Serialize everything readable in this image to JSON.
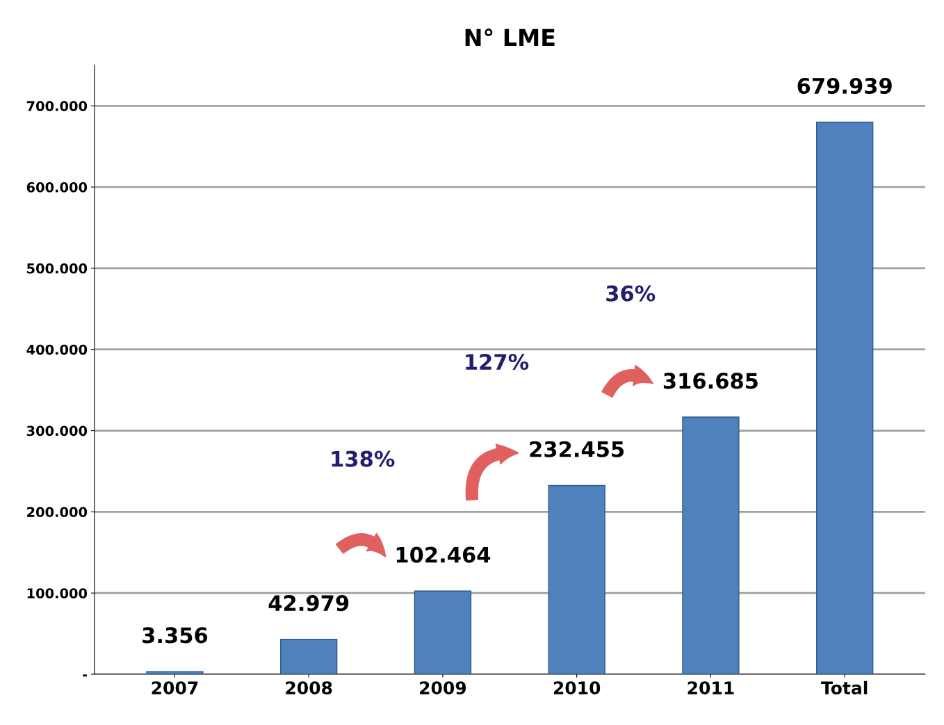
{
  "chart_data": {
    "type": "bar",
    "title": "N° LME",
    "categories": [
      "2007",
      "2008",
      "2009",
      "2010",
      "2011",
      "Total"
    ],
    "values": [
      3356,
      42979,
      102464,
      232455,
      316685,
      679939
    ],
    "value_labels": [
      "3.356",
      "42.979",
      "102.464",
      "232.455",
      "316.685",
      "679.939"
    ],
    "color": "#4f81bd",
    "ylim": [
      0,
      750000
    ],
    "yticks": [
      {
        "value": 0,
        "label": "-"
      },
      {
        "value": 100000,
        "label": "100.000"
      },
      {
        "value": 200000,
        "label": "200.000"
      },
      {
        "value": 300000,
        "label": "300.000"
      },
      {
        "value": 400000,
        "label": "400.000"
      },
      {
        "value": 500000,
        "label": "500.000"
      },
      {
        "value": 600000,
        "label": "600.000"
      },
      {
        "value": 700000,
        "label": "700.000"
      }
    ],
    "grid": "y",
    "annotations": [
      "138%",
      "127%",
      "36%"
    ]
  }
}
